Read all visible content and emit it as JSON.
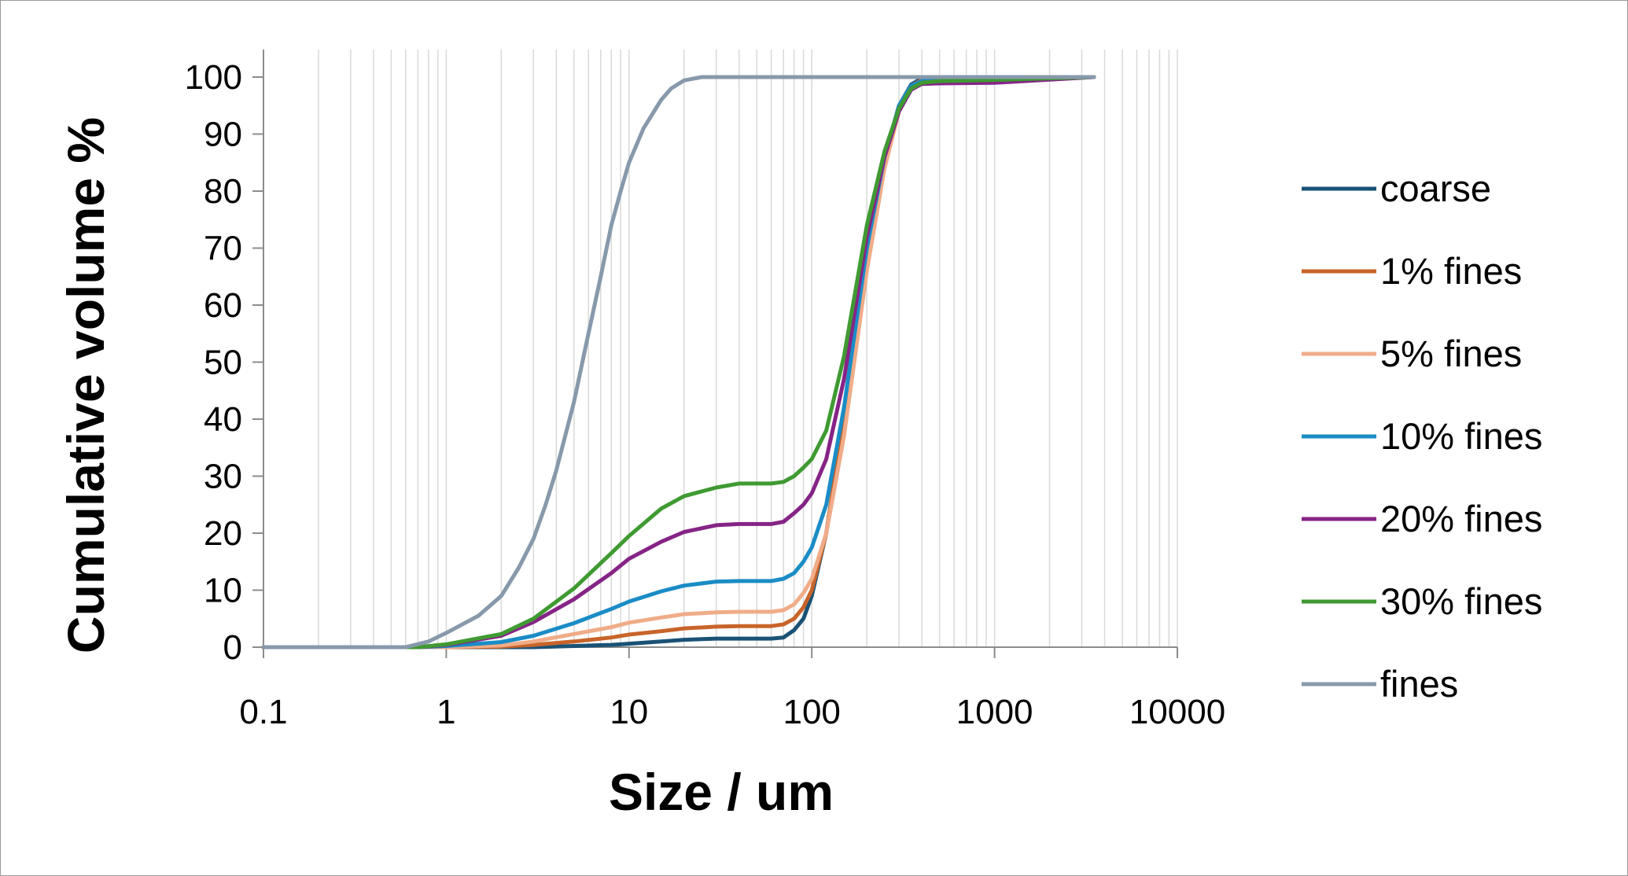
{
  "chart_data": {
    "type": "line",
    "title": "",
    "xlabel": "Size / um",
    "ylabel": "Cumulative volume %",
    "x_scale": "log",
    "xlim": [
      0.1,
      10000
    ],
    "ylim": [
      0,
      100
    ],
    "x_ticks": [
      "0.1",
      "1",
      "10",
      "100",
      "1000",
      "10000"
    ],
    "y_ticks": [
      "0",
      "10",
      "20",
      "30",
      "40",
      "50",
      "60",
      "70",
      "80",
      "90",
      "100"
    ],
    "grid": "vertical minor log gridlines",
    "legend_position": "right",
    "series": [
      {
        "name": "coarse",
        "color": "#1a5276",
        "points": [
          [
            0.1,
            0
          ],
          [
            1,
            0
          ],
          [
            3,
            0
          ],
          [
            5,
            0.2
          ],
          [
            8,
            0.4
          ],
          [
            10,
            0.6
          ],
          [
            15,
            1.0
          ],
          [
            20,
            1.3
          ],
          [
            30,
            1.5
          ],
          [
            40,
            1.5
          ],
          [
            60,
            1.5
          ],
          [
            70,
            1.7
          ],
          [
            80,
            3
          ],
          [
            90,
            5
          ],
          [
            100,
            9
          ],
          [
            120,
            20
          ],
          [
            150,
            40
          ],
          [
            200,
            70
          ],
          [
            250,
            86
          ],
          [
            300,
            95
          ],
          [
            350,
            98.7
          ],
          [
            400,
            99.8
          ],
          [
            500,
            100
          ],
          [
            1000,
            100
          ],
          [
            3500,
            100
          ]
        ]
      },
      {
        "name": "1% fines",
        "color": "#c8642a",
        "points": [
          [
            0.1,
            0
          ],
          [
            1,
            0
          ],
          [
            2,
            0.1
          ],
          [
            3,
            0.4
          ],
          [
            5,
            1.0
          ],
          [
            8,
            1.7
          ],
          [
            10,
            2.2
          ],
          [
            15,
            2.8
          ],
          [
            20,
            3.3
          ],
          [
            30,
            3.6
          ],
          [
            40,
            3.7
          ],
          [
            60,
            3.7
          ],
          [
            70,
            4
          ],
          [
            80,
            5
          ],
          [
            90,
            7
          ],
          [
            100,
            10
          ],
          [
            120,
            20
          ],
          [
            150,
            40
          ],
          [
            200,
            70
          ],
          [
            250,
            86
          ],
          [
            300,
            95
          ],
          [
            350,
            98.5
          ],
          [
            400,
            99.5
          ],
          [
            500,
            100
          ],
          [
            1000,
            100
          ],
          [
            3500,
            100
          ]
        ]
      },
      {
        "name": "5% fines",
        "color": "#f0ac88",
        "points": [
          [
            0.1,
            0
          ],
          [
            1,
            0
          ],
          [
            2,
            0.3
          ],
          [
            3,
            1.0
          ],
          [
            5,
            2.3
          ],
          [
            8,
            3.5
          ],
          [
            10,
            4.3
          ],
          [
            15,
            5.2
          ],
          [
            20,
            5.8
          ],
          [
            30,
            6.1
          ],
          [
            40,
            6.2
          ],
          [
            60,
            6.2
          ],
          [
            70,
            6.5
          ],
          [
            80,
            7.5
          ],
          [
            90,
            9.5
          ],
          [
            100,
            12
          ],
          [
            120,
            20
          ],
          [
            150,
            37
          ],
          [
            200,
            66
          ],
          [
            250,
            84
          ],
          [
            300,
            94
          ],
          [
            350,
            98
          ],
          [
            400,
            99
          ],
          [
            500,
            99.5
          ],
          [
            1000,
            99.7
          ],
          [
            3500,
            100
          ]
        ]
      },
      {
        "name": "10% fines",
        "color": "#1a8cc6",
        "points": [
          [
            0.1,
            0
          ],
          [
            0.7,
            0
          ],
          [
            1,
            0.2
          ],
          [
            2,
            0.9
          ],
          [
            3,
            2.0
          ],
          [
            5,
            4.2
          ],
          [
            8,
            6.7
          ],
          [
            10,
            8.0
          ],
          [
            15,
            9.8
          ],
          [
            20,
            10.8
          ],
          [
            30,
            11.5
          ],
          [
            40,
            11.6
          ],
          [
            60,
            11.6
          ],
          [
            70,
            12
          ],
          [
            80,
            13
          ],
          [
            90,
            15
          ],
          [
            100,
            17.5
          ],
          [
            120,
            25
          ],
          [
            150,
            42
          ],
          [
            200,
            70
          ],
          [
            250,
            86
          ],
          [
            300,
            95
          ],
          [
            350,
            98.5
          ],
          [
            400,
            99.3
          ],
          [
            500,
            99.5
          ],
          [
            1000,
            99.8
          ],
          [
            3500,
            100
          ]
        ]
      },
      {
        "name": "20% fines",
        "color": "#862486",
        "points": [
          [
            0.1,
            0
          ],
          [
            0.7,
            0
          ],
          [
            1,
            0.4
          ],
          [
            2,
            2.0
          ],
          [
            3,
            4.4
          ],
          [
            5,
            8.4
          ],
          [
            8,
            13
          ],
          [
            10,
            15.5
          ],
          [
            15,
            18.5
          ],
          [
            20,
            20.2
          ],
          [
            30,
            21.4
          ],
          [
            40,
            21.6
          ],
          [
            60,
            21.6
          ],
          [
            70,
            22
          ],
          [
            80,
            23.5
          ],
          [
            90,
            25
          ],
          [
            100,
            27
          ],
          [
            120,
            33
          ],
          [
            150,
            47
          ],
          [
            200,
            72
          ],
          [
            250,
            86
          ],
          [
            300,
            94
          ],
          [
            350,
            97.8
          ],
          [
            400,
            98.8
          ],
          [
            500,
            98.9
          ],
          [
            1000,
            99
          ],
          [
            3500,
            100
          ]
        ]
      },
      {
        "name": "30% fines",
        "color": "#3f9a32",
        "points": [
          [
            0.1,
            0
          ],
          [
            0.7,
            0
          ],
          [
            1,
            0.5
          ],
          [
            2,
            2.3
          ],
          [
            3,
            5.0
          ],
          [
            5,
            10.3
          ],
          [
            8,
            16.5
          ],
          [
            10,
            19.5
          ],
          [
            15,
            24.3
          ],
          [
            20,
            26.5
          ],
          [
            30,
            28
          ],
          [
            40,
            28.7
          ],
          [
            60,
            28.7
          ],
          [
            70,
            29
          ],
          [
            80,
            30
          ],
          [
            90,
            31.5
          ],
          [
            100,
            33
          ],
          [
            120,
            38
          ],
          [
            150,
            51
          ],
          [
            200,
            74
          ],
          [
            250,
            87
          ],
          [
            300,
            94.5
          ],
          [
            350,
            98
          ],
          [
            400,
            99
          ],
          [
            500,
            99.3
          ],
          [
            1000,
            99.5
          ],
          [
            3500,
            100
          ]
        ]
      },
      {
        "name": "fines",
        "color": "#8799ab",
        "points": [
          [
            0.1,
            0
          ],
          [
            0.6,
            0
          ],
          [
            0.8,
            1
          ],
          [
            1,
            2.5
          ],
          [
            1.5,
            5.5
          ],
          [
            2,
            9
          ],
          [
            2.5,
            14
          ],
          [
            3,
            19
          ],
          [
            3.5,
            25
          ],
          [
            4,
            31
          ],
          [
            5,
            43
          ],
          [
            6,
            55
          ],
          [
            7,
            65
          ],
          [
            8,
            74
          ],
          [
            9,
            80
          ],
          [
            10,
            85
          ],
          [
            12,
            91
          ],
          [
            15,
            96
          ],
          [
            17,
            98
          ],
          [
            20,
            99.4
          ],
          [
            25,
            100
          ],
          [
            30,
            100
          ],
          [
            100,
            100
          ],
          [
            1000,
            100
          ],
          [
            3500,
            100
          ]
        ]
      }
    ]
  }
}
